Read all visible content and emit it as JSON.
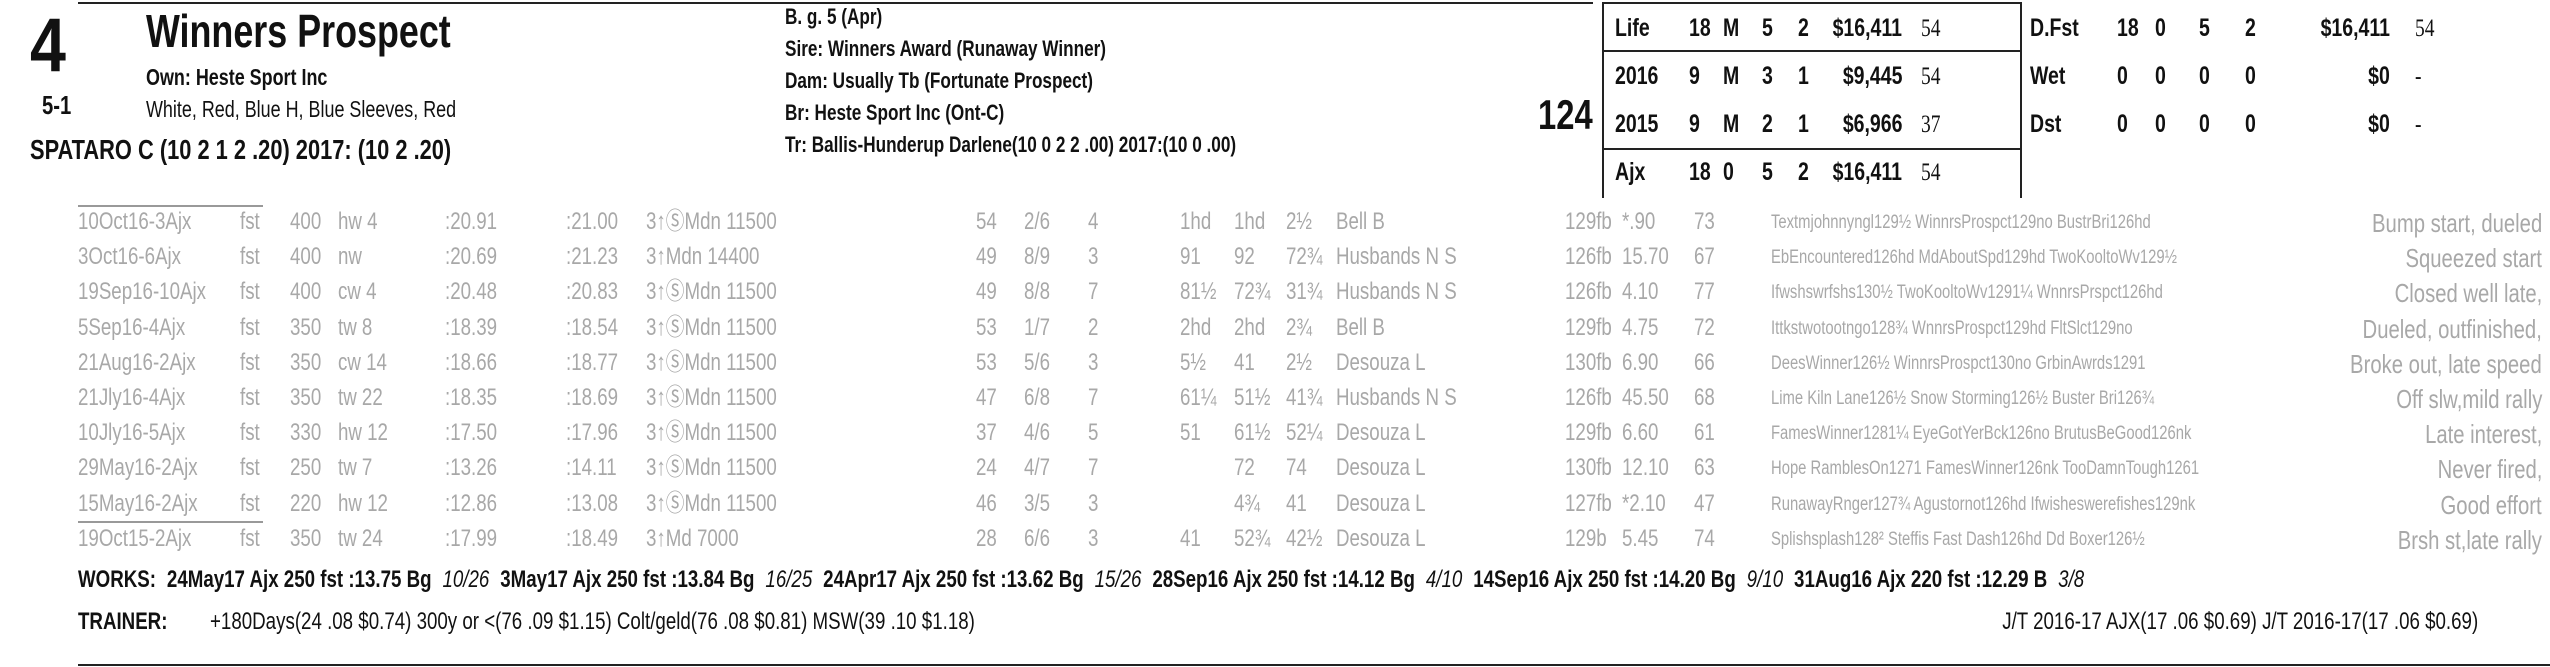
{
  "header": {
    "post": "4",
    "odds": "5-1",
    "name": "Winners Prospect",
    "owner": "Own: Heste Sport Inc",
    "silks": "White, Red, Blue H, Blue Sleeves, Red",
    "jockey": "SPATARO C (10 2 1 2 .20) 2017: (10 2 .20)"
  },
  "breeding": {
    "description": "B. g. 5 (Apr)",
    "sire": "Sire: Winners Award (Runaway Winner)",
    "dam": "Dam: Usually Tb (Fortunate Prospect)",
    "breeder": "Br:   Heste Sport Inc (Ont-C)",
    "trainer": "Tr:   Ballis-Hunderup Darlene(10 0 2 2 .00)  2017:(10 0 .00)"
  },
  "weight": "124",
  "record": [
    [
      "Life",
      "18",
      "M",
      "5",
      "2",
      "$16,411",
      "54"
    ],
    [
      "2016",
      "9",
      "M",
      "3",
      "1",
      "$9,445",
      "54"
    ],
    [
      "2015",
      "9",
      "M",
      "2",
      "1",
      "$6,966",
      "37"
    ],
    [
      "Ajx",
      "18",
      "0",
      "5",
      "2",
      "$16,411",
      "54"
    ]
  ],
  "surface_record": [
    [
      "D.Fst",
      "18",
      "0",
      "5",
      "2",
      "$16,411",
      "54"
    ],
    [
      "Wet",
      "0",
      "0",
      "0",
      "0",
      "$0",
      "-"
    ],
    [
      "Dst",
      "0",
      "0",
      "0",
      "0",
      "$0",
      "-"
    ]
  ],
  "past_performances": [
    [
      "10Oct16-3Ajx",
      "fst",
      "400",
      "hw 4",
      ":20.91",
      ":21.00",
      "3↑ⓈMdn 11500",
      "54",
      "2/6",
      "4",
      "1hd",
      "1hd",
      "2½",
      "Bell B",
      "129fb",
      "*.90",
      "73",
      "Textmjohnnyngl129½ WinnrsProspct129no BustrBri126hd",
      "Bump start, dueled"
    ],
    [
      "3Oct16-6Ajx",
      "fst",
      "400",
      "nw",
      ":20.69",
      ":21.23",
      "3↑Mdn 14400",
      "49",
      "8/9",
      "3",
      "91",
      "92",
      "72¾",
      "Husbands N S",
      "126fb",
      "15.70",
      "67",
      "EbEncountered126hd MdAboutSpd129hd TwoKooltoWv129½",
      "Squeezed start"
    ],
    [
      "19Sep16-10Ajx",
      "fst",
      "400",
      "cw 4",
      ":20.48",
      ":20.83",
      "3↑ⓈMdn 11500",
      "49",
      "8/8",
      "7",
      "81½",
      "72¾",
      "31¾",
      "Husbands N S",
      "126fb",
      "4.10",
      "77",
      "Ifwshswrfshs130½ TwoKooltoWv1291¼ WnnrsPrspct126hd",
      "Closed well late,"
    ],
    [
      "5Sep16-4Ajx",
      "fst",
      "350",
      "tw 8",
      ":18.39",
      ":18.54",
      "3↑ⓈMdn 11500",
      "53",
      "1/7",
      "2",
      "2hd",
      "2hd",
      "2¾",
      "Bell B",
      "129fb",
      "4.75",
      "72",
      "Ittkstwotootngo128¾ WnnrsProspct129hd FltSlct129no",
      "Dueled, outfinished,"
    ],
    [
      "21Aug16-2Ajx",
      "fst",
      "350",
      "cw 14",
      ":18.66",
      ":18.77",
      "3↑ⓈMdn 11500",
      "53",
      "5/6",
      "3",
      "5½",
      "41",
      "2½",
      "Desouza L",
      "130fb",
      "6.90",
      "66",
      "DeesWinner126½ WinnrsProspct130no GrbinAwrds1291",
      "Broke out, late speed"
    ],
    [
      "21Jly16-4Ajx",
      "fst",
      "350",
      "tw 22",
      ":18.35",
      ":18.69",
      "3↑ⓈMdn 11500",
      "47",
      "6/8",
      "7",
      "61¼",
      "51½",
      "41¾",
      "Husbands N S",
      "126fb",
      "45.50",
      "68",
      "Lime Kiln Lane126½ Snow Storming126½ Buster Bri126¾",
      "Off slw,mild rally"
    ],
    [
      "10Jly16-5Ajx",
      "fst",
      "330",
      "hw 12",
      ":17.50",
      ":17.96",
      "3↑ⓈMdn 11500",
      "37",
      "4/6",
      "5",
      "51",
      "61½",
      "52¼",
      "Desouza L",
      "129fb",
      "6.60",
      "61",
      "FamesWinner1281¼ EyeGotYerBck126no BrutusBeGood126nk",
      "Late interest,"
    ],
    [
      "29May16-2Ajx",
      "fst",
      "250",
      "tw 7",
      ":13.26",
      ":14.11",
      "3↑ⓈMdn 11500",
      "24",
      "4/7",
      "7",
      null,
      "72",
      "74",
      "Desouza L",
      "130fb",
      "12.10",
      "63",
      "Hope RamblesOn1271 FamesWinner126nk TooDamnTough1261",
      "Never fired,"
    ],
    [
      "15May16-2Ajx",
      "fst",
      "220",
      "hw 12",
      ":12.86",
      ":13.08",
      "3↑ⓈMdn 11500",
      "46",
      "3/5",
      "3",
      null,
      "4¾",
      "41",
      "Desouza L",
      "127fb",
      "*2.10",
      "47",
      "RunawayRnger127¾ Agustornot126hd Ifwisheswerefishes129nk",
      "Good effort"
    ],
    [
      "19Oct15-2Ajx",
      "fst",
      "350",
      "tw 24",
      ":17.99",
      ":18.49",
      "3↑Md 7000",
      "28",
      "6/6",
      "3",
      "41",
      "52¾",
      "42½",
      "Desouza L",
      "129b",
      "5.45",
      "74",
      "Splishsplash128² Steffis Fast Dash126hd Dd Boxer126½",
      "Brsh st,late rally"
    ]
  ],
  "works": {
    "label": "WORKS:",
    "items": [
      {
        "text": "24May17 Ajx 250 fst :13.75 Bg",
        "rank": "10/26"
      },
      {
        "text": "3May17 Ajx 250 fst :13.84 Bg",
        "rank": "16/25"
      },
      {
        "text": "24Apr17 Ajx 250 fst :13.62 Bg",
        "rank": "15/26"
      },
      {
        "text": "28Sep16 Ajx 250 fst :14.12 Bg",
        "rank": "4/10"
      },
      {
        "text": "14Sep16 Ajx 250 fst :14.20 Bg",
        "rank": "9/10"
      },
      {
        "text": "31Aug16 Ajx 220 fst :12.29 B",
        "rank": "3/8"
      }
    ]
  },
  "trainer_stats": {
    "label": "TRAINER:",
    "text": "+180Days(24 .08 $0.74) 300y or <(76 .09 $1.15) Colt/geld(76 .08 $0.81) MSW(39 .10 $1.18)",
    "jockey_trainer": "J/T 2016-17 AJX(17 .06 $0.69)  J/T 2016-17(17 .06 $0.69)"
  }
}
